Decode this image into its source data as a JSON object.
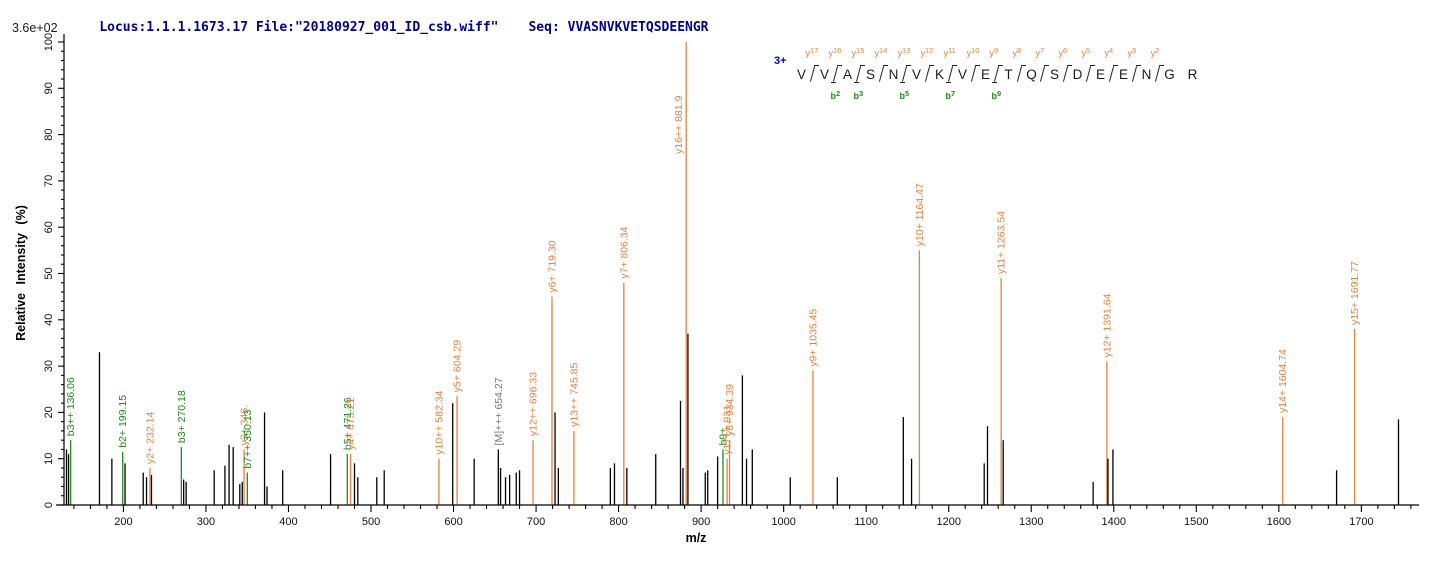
{
  "header": {
    "locus_file": "Locus:1.1.1.1673.17 File:\"20180927_001_ID_csb.wiff\"",
    "seq": "Seq: VVASNVKVETQSDEENGR"
  },
  "colors": {
    "y_ion": "#E2823E",
    "b_ion": "#1E8A1E",
    "precursor_label": "#7a7a7a",
    "peak": "#000000",
    "header_text": "#00008B",
    "charge_label": "#0000CC",
    "axis": "#000000"
  },
  "peptide": {
    "charge": "3+",
    "residues": [
      "V",
      "V",
      "A",
      "S",
      "N",
      "V",
      "K",
      "V",
      "E",
      "T",
      "Q",
      "S",
      "D",
      "E",
      "E",
      "N",
      "G",
      "R"
    ],
    "gaps": [
      {
        "y": "y17",
        "b": null,
        "slash": true
      },
      {
        "y": "y16",
        "b": "b2",
        "slash": true
      },
      {
        "y": "y15",
        "b": "b3",
        "slash": true
      },
      {
        "y": "y14",
        "b": null,
        "slash": true
      },
      {
        "y": "y13",
        "b": "b5",
        "slash": true
      },
      {
        "y": "y12",
        "b": null,
        "slash": true
      },
      {
        "y": "y11",
        "b": "b7",
        "slash": true
      },
      {
        "y": "y10",
        "b": null,
        "slash": true
      },
      {
        "y": "y9",
        "b": "b9",
        "slash": true
      },
      {
        "y": "y8",
        "b": null,
        "slash": true
      },
      {
        "y": "y7",
        "b": null,
        "slash": true
      },
      {
        "y": "y6",
        "b": null,
        "slash": true
      },
      {
        "y": "y5",
        "b": null,
        "slash": true
      },
      {
        "y": "y4",
        "b": null,
        "slash": true
      },
      {
        "y": "y3",
        "b": null,
        "slash": true
      },
      {
        "y": "y2",
        "b": null,
        "slash": true
      },
      {
        "y": null,
        "b": null,
        "slash": false
      }
    ]
  },
  "chart_data": {
    "type": "bar",
    "subtype": "ms2-mass-spectrum",
    "title": "",
    "xlabel": "m/z",
    "ylabel": "Relative Intensity (%)",
    "base_peak_intensity": "3.6e+02",
    "xlim": [
      128,
      1765
    ],
    "ylim": [
      0,
      100
    ],
    "x_major_ticks": [
      200,
      300,
      400,
      500,
      600,
      700,
      800,
      900,
      1000,
      1100,
      1200,
      1300,
      1400,
      1500,
      1600,
      1700
    ],
    "x_minor_step": 20,
    "y_major_ticks": [
      0,
      10,
      20,
      30,
      40,
      50,
      60,
      70,
      80,
      90,
      100
    ],
    "y_minor_step": 2,
    "grid": false,
    "legend": false,
    "peaks": [
      {
        "mz": 136.06,
        "intensity": 14,
        "ion": "b",
        "label": "b3++ 136.06"
      },
      {
        "mz": 199.15,
        "intensity": 11.5,
        "ion": "b",
        "label": "b2+ 199.15"
      },
      {
        "mz": 232.14,
        "intensity": 8,
        "ion": "y",
        "label": "y2+ 232.14"
      },
      {
        "mz": 270.18,
        "intensity": 12.5,
        "ion": "b",
        "label": "b3+ 270.18"
      },
      {
        "mz": 346.16,
        "intensity": 12,
        "ion": "y",
        "label": "y3+ 346."
      },
      {
        "mz": 350.13,
        "intensity": 7,
        "ion": "b",
        "label": "b7++ 350.13"
      },
      {
        "mz": 471.26,
        "intensity": 11,
        "ion": "b",
        "label": "b5+ 471.26"
      },
      {
        "mz": 475.21,
        "intensity": 11,
        "ion": "y",
        "label": "y4+ 475.21"
      },
      {
        "mz": 582.34,
        "intensity": 10,
        "ion": "y",
        "label": "y10++ 582.34"
      },
      {
        "mz": 604.29,
        "intensity": 23.5,
        "ion": "y",
        "label": "y5+ 604.29"
      },
      {
        "mz": 654.27,
        "intensity": 12,
        "ion": "precursor",
        "label": "[M]+++ 654.27"
      },
      {
        "mz": 696.33,
        "intensity": 14,
        "ion": "y",
        "label": "y12++ 696.33"
      },
      {
        "mz": 719.3,
        "intensity": 45,
        "ion": "y",
        "label": "y6+ 719.30"
      },
      {
        "mz": 745.85,
        "intensity": 16,
        "ion": "y",
        "label": "y13++ 745.85"
      },
      {
        "mz": 806.34,
        "intensity": 48,
        "ion": "y",
        "label": "y7+ 806.34"
      },
      {
        "mz": 881.9,
        "intensity": 100,
        "ion": "y",
        "label": "y16++ 881.9"
      },
      {
        "mz": 926.5,
        "intensity": 12,
        "ion": "b",
        "label": "b9+"
      },
      {
        "mz": 931.5,
        "intensity": 10,
        "ion": "y",
        "label": "y17++ 931."
      },
      {
        "mz": 934.39,
        "intensity": 14,
        "ion": "y",
        "label": "y8+ 934.39"
      },
      {
        "mz": 1035.45,
        "intensity": 29,
        "ion": "y",
        "label": "y9+ 1035.45"
      },
      {
        "mz": 1164.47,
        "intensity": 55,
        "ion": "y",
        "label": "y10+ 1164.47"
      },
      {
        "mz": 1263.54,
        "intensity": 49,
        "ion": "y",
        "label": "y11+ 1263.54"
      },
      {
        "mz": 1391.64,
        "intensity": 31,
        "ion": "y",
        "label": "y12+ 1391.64"
      },
      {
        "mz": 1604.74,
        "intensity": 19,
        "ion": "y",
        "label": "y14+ 1604.74"
      },
      {
        "mz": 1691.77,
        "intensity": 38,
        "ion": "y",
        "label": "y15+ 1691.77"
      },
      {
        "mz": 131,
        "intensity": 12,
        "ion": "unassigned"
      },
      {
        "mz": 133.5,
        "intensity": 11,
        "ion": "unassigned"
      },
      {
        "mz": 171,
        "intensity": 33,
        "ion": "unassigned"
      },
      {
        "mz": 186,
        "intensity": 10,
        "ion": "unassigned"
      },
      {
        "mz": 202,
        "intensity": 9,
        "ion": "unassigned"
      },
      {
        "mz": 224,
        "intensity": 7,
        "ion": "unassigned"
      },
      {
        "mz": 228,
        "intensity": 6,
        "ion": "unassigned"
      },
      {
        "mz": 234,
        "intensity": 6.5,
        "ion": "unassigned"
      },
      {
        "mz": 273,
        "intensity": 5.5,
        "ion": "unassigned"
      },
      {
        "mz": 276,
        "intensity": 5,
        "ion": "unassigned"
      },
      {
        "mz": 310,
        "intensity": 7.5,
        "ion": "unassigned"
      },
      {
        "mz": 323,
        "intensity": 8.5,
        "ion": "unassigned"
      },
      {
        "mz": 328,
        "intensity": 13,
        "ion": "unassigned"
      },
      {
        "mz": 333,
        "intensity": 12.5,
        "ion": "unassigned"
      },
      {
        "mz": 341,
        "intensity": 4.5,
        "ion": "unassigned"
      },
      {
        "mz": 344,
        "intensity": 5,
        "ion": "unassigned"
      },
      {
        "mz": 371,
        "intensity": 20,
        "ion": "unassigned"
      },
      {
        "mz": 374,
        "intensity": 4,
        "ion": "unassigned"
      },
      {
        "mz": 393,
        "intensity": 7.5,
        "ion": "unassigned"
      },
      {
        "mz": 451,
        "intensity": 11,
        "ion": "unassigned"
      },
      {
        "mz": 480,
        "intensity": 9,
        "ion": "unassigned"
      },
      {
        "mz": 484,
        "intensity": 6,
        "ion": "unassigned"
      },
      {
        "mz": 507,
        "intensity": 6,
        "ion": "unassigned"
      },
      {
        "mz": 516,
        "intensity": 7.5,
        "ion": "unassigned"
      },
      {
        "mz": 599,
        "intensity": 22,
        "ion": "unassigned"
      },
      {
        "mz": 625,
        "intensity": 10,
        "ion": "unassigned"
      },
      {
        "mz": 657,
        "intensity": 8,
        "ion": "unassigned"
      },
      {
        "mz": 663,
        "intensity": 6,
        "ion": "unassigned"
      },
      {
        "mz": 668,
        "intensity": 6.5,
        "ion": "unassigned"
      },
      {
        "mz": 676,
        "intensity": 7,
        "ion": "unassigned"
      },
      {
        "mz": 680,
        "intensity": 7.5,
        "ion": "unassigned"
      },
      {
        "mz": 723,
        "intensity": 20,
        "ion": "unassigned"
      },
      {
        "mz": 727,
        "intensity": 8,
        "ion": "unassigned"
      },
      {
        "mz": 790,
        "intensity": 8,
        "ion": "unassigned"
      },
      {
        "mz": 795,
        "intensity": 9,
        "ion": "unassigned"
      },
      {
        "mz": 810,
        "intensity": 8,
        "ion": "unassigned"
      },
      {
        "mz": 845,
        "intensity": 11,
        "ion": "unassigned"
      },
      {
        "mz": 875,
        "intensity": 22.5,
        "ion": "unassigned"
      },
      {
        "mz": 878,
        "intensity": 8,
        "ion": "unassigned"
      },
      {
        "mz": 884,
        "intensity": 37,
        "ion": "unassigned"
      },
      {
        "mz": 905,
        "intensity": 7,
        "ion": "unassigned"
      },
      {
        "mz": 908,
        "intensity": 7.5,
        "ion": "unassigned"
      },
      {
        "mz": 920,
        "intensity": 10.5,
        "ion": "unassigned"
      },
      {
        "mz": 950,
        "intensity": 28,
        "ion": "unassigned"
      },
      {
        "mz": 955,
        "intensity": 10,
        "ion": "unassigned"
      },
      {
        "mz": 962,
        "intensity": 12,
        "ion": "unassigned"
      },
      {
        "mz": 1008,
        "intensity": 6,
        "ion": "unassigned"
      },
      {
        "mz": 1065,
        "intensity": 6,
        "ion": "unassigned"
      },
      {
        "mz": 1145,
        "intensity": 19,
        "ion": "unassigned"
      },
      {
        "mz": 1155,
        "intensity": 10,
        "ion": "unassigned"
      },
      {
        "mz": 1243,
        "intensity": 9,
        "ion": "unassigned"
      },
      {
        "mz": 1247,
        "intensity": 17,
        "ion": "unassigned"
      },
      {
        "mz": 1266,
        "intensity": 14,
        "ion": "unassigned"
      },
      {
        "mz": 1375,
        "intensity": 5,
        "ion": "unassigned"
      },
      {
        "mz": 1393,
        "intensity": 10,
        "ion": "unassigned"
      },
      {
        "mz": 1399,
        "intensity": 12,
        "ion": "unassigned"
      },
      {
        "mz": 1670,
        "intensity": 7.5,
        "ion": "unassigned"
      },
      {
        "mz": 1745,
        "intensity": 18.5,
        "ion": "unassigned"
      }
    ]
  }
}
